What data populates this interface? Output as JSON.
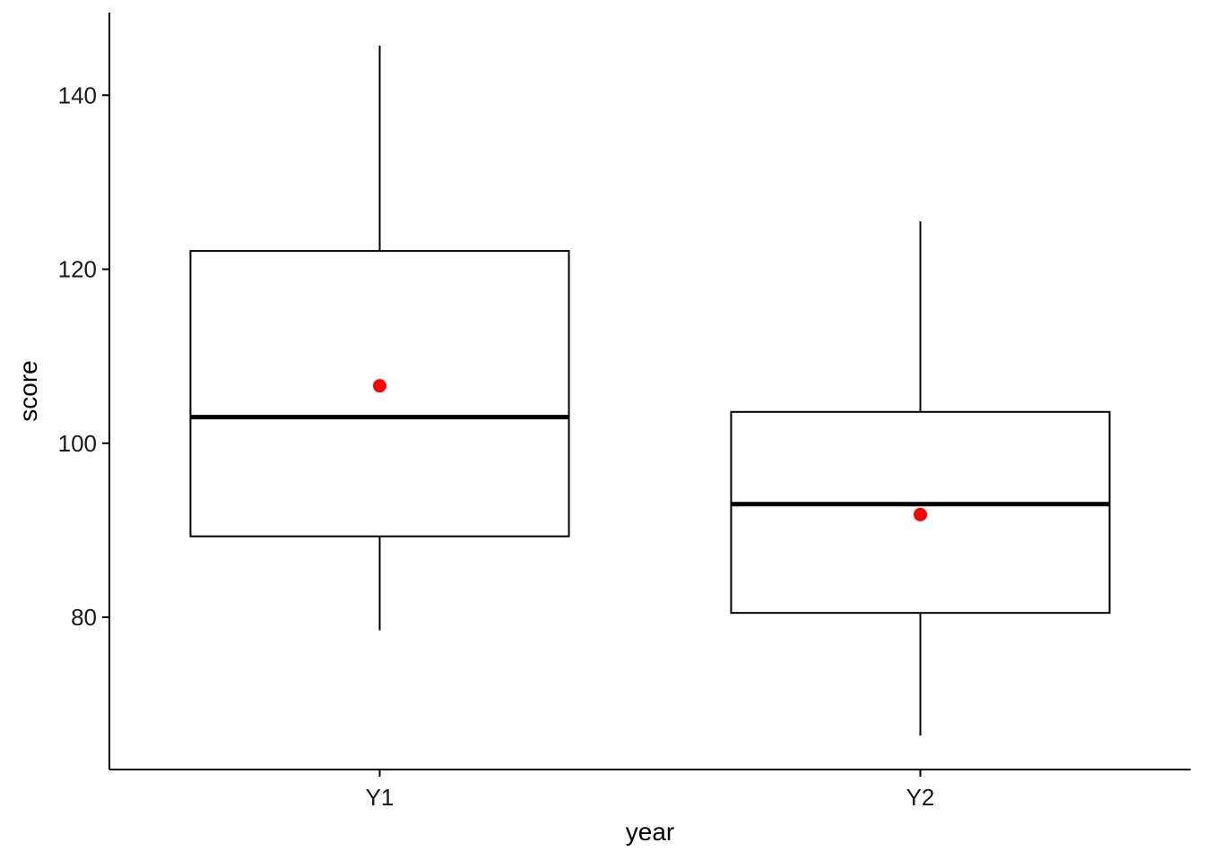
{
  "chart_data": {
    "type": "boxplot",
    "title": "",
    "xlabel": "year",
    "ylabel": "score",
    "categories": [
      "Y1",
      "Y2"
    ],
    "ylim": [
      62.5,
      149.5
    ],
    "yticks": [
      80,
      100,
      120,
      140
    ],
    "ytick_labels": [
      "80",
      "100",
      "120",
      "140"
    ],
    "grid": false,
    "boxes": [
      {
        "category": "Y1",
        "min": 78.5,
        "q1": 89.3,
        "median": 103.0,
        "q3": 122.1,
        "max": 145.7,
        "mean": 106.6
      },
      {
        "category": "Y2",
        "min": 66.4,
        "q1": 80.5,
        "median": 93.0,
        "q3": 103.6,
        "max": 125.5,
        "mean": 91.8
      }
    ],
    "colors": {
      "box_stroke": "#000000",
      "mean_point": "#ff0000",
      "axis": "#000000"
    }
  }
}
